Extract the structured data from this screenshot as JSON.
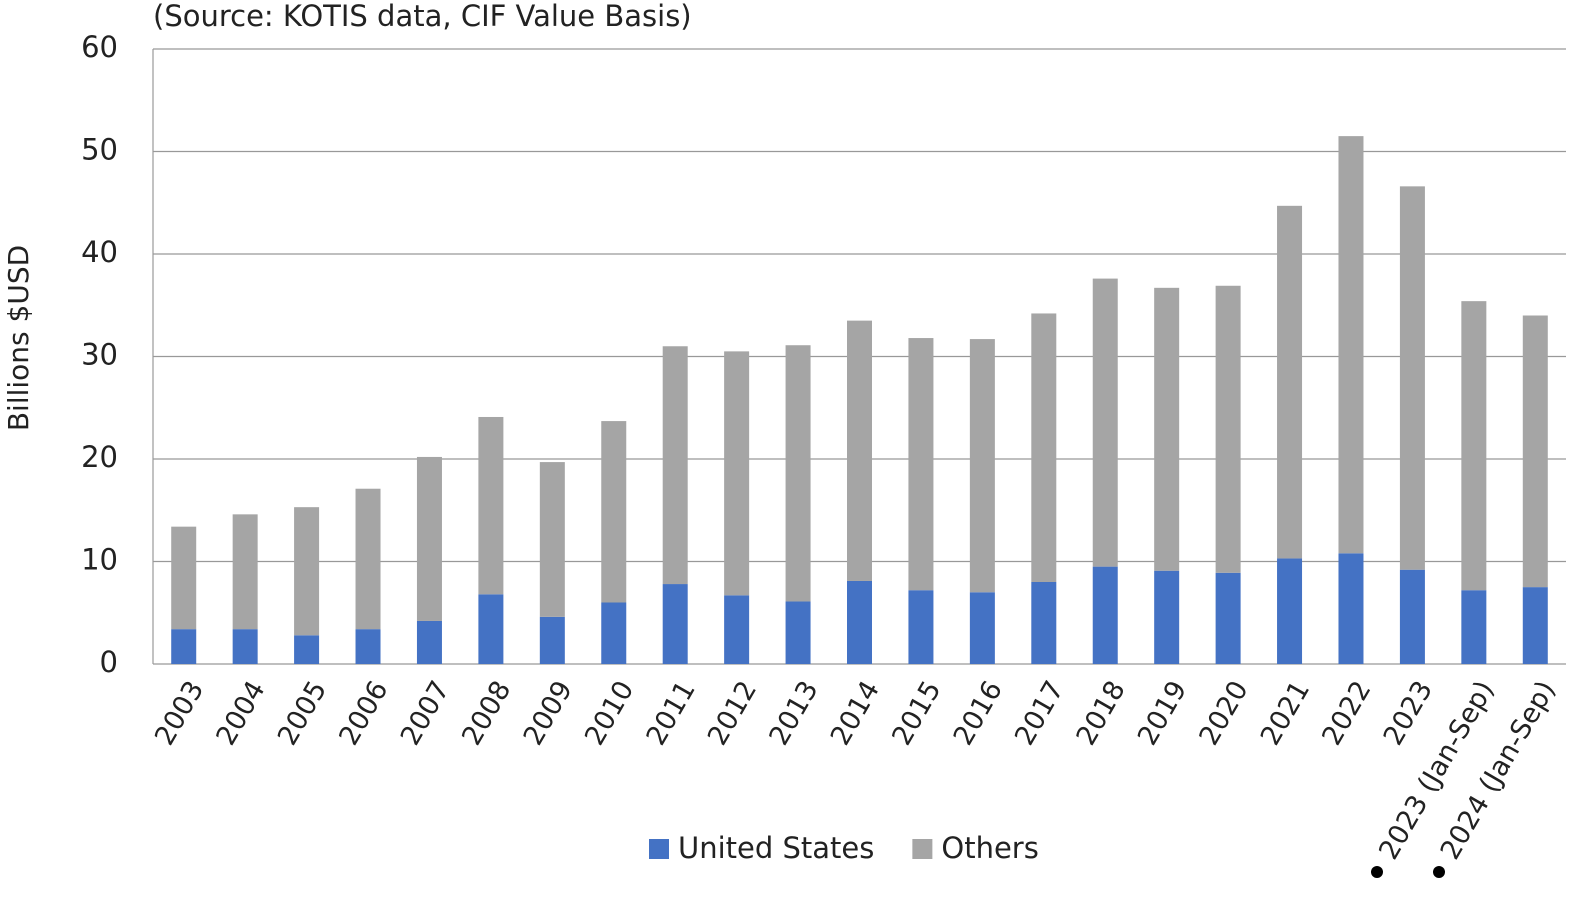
{
  "chart_data": {
    "type": "bar",
    "stacked": true,
    "subtitle": "(Source: KOTIS data, CIF Value Basis)",
    "y_label": "Billions $USD",
    "categories": [
      "2003",
      "2004",
      "2005",
      "2006",
      "2007",
      "2008",
      "2009",
      "2010",
      "2011",
      "2012",
      "2013",
      "2014",
      "2015",
      "2016",
      "2017",
      "2018",
      "2019",
      "2020",
      "2021",
      "2022",
      "2023",
      "2023 (Jan-Sep)",
      "2024 (Jan-Sep)"
    ],
    "series": [
      {
        "name": "United States",
        "color": "#4472c4",
        "values": [
          3.4,
          3.4,
          2.8,
          3.4,
          4.2,
          6.8,
          4.6,
          6.0,
          7.8,
          6.7,
          6.1,
          8.1,
          7.2,
          7.0,
          8.0,
          9.5,
          9.1,
          8.9,
          10.3,
          10.8,
          9.2,
          7.2,
          7.5
        ]
      },
      {
        "name": "Others",
        "color": "#a5a5a5",
        "values": [
          10.0,
          11.2,
          12.5,
          13.7,
          16.0,
          17.3,
          15.1,
          17.7,
          23.2,
          23.8,
          25.0,
          25.4,
          24.6,
          24.7,
          26.2,
          28.1,
          27.6,
          28.0,
          34.4,
          40.7,
          37.4,
          28.2,
          26.5
        ]
      }
    ],
    "ylim": [
      0,
      60
    ],
    "yticks": [
      0,
      10,
      20,
      30,
      40,
      50,
      60
    ],
    "grid": true,
    "legend": "bottom"
  }
}
